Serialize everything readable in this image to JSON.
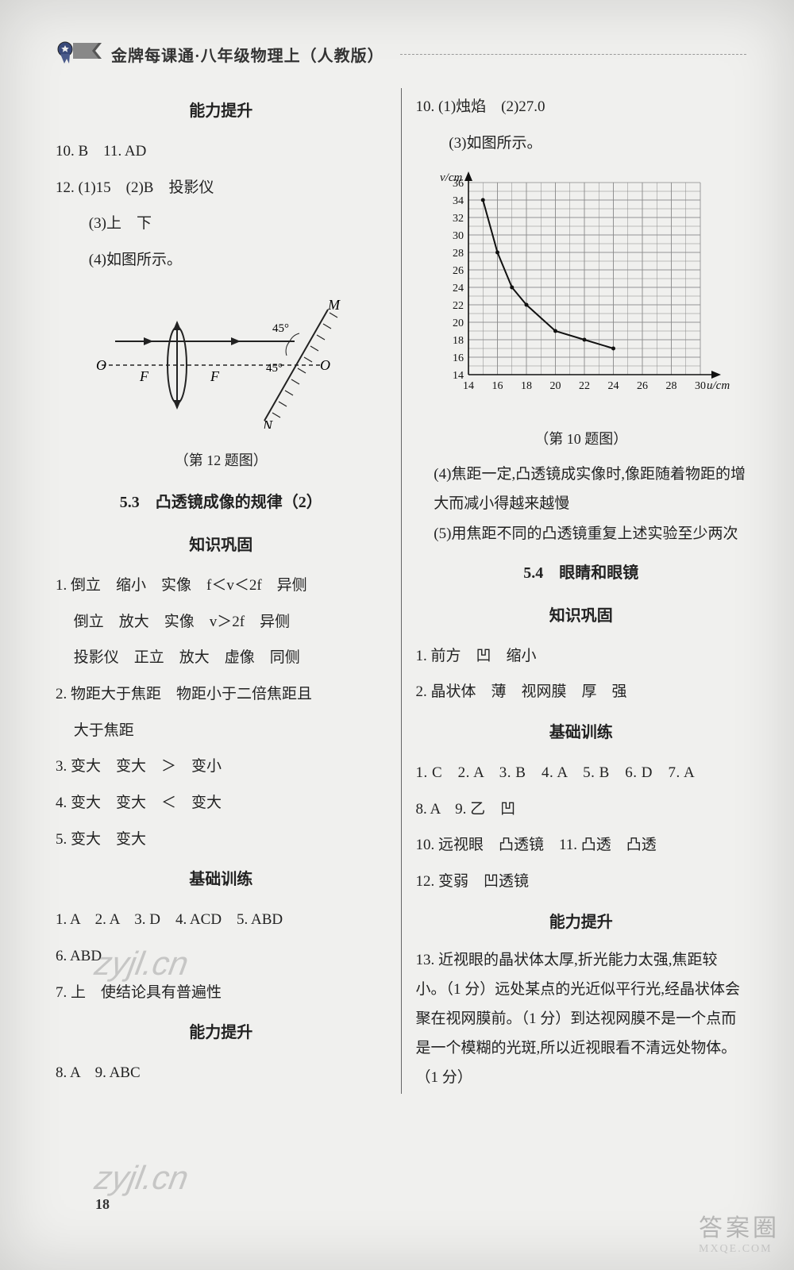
{
  "header": {
    "title": "金牌每课通·八年级物理上（人教版）"
  },
  "left": {
    "sec_ability": "能力提升",
    "l10": "10. B　11. AD",
    "l12": "12. (1)15　(2)B　投影仪",
    "l12_3": "(3)上　下",
    "l12_4": "(4)如图所示。",
    "fig12_caption": "（第 12 题图）",
    "fig12": {
      "labels": {
        "O_left": "O",
        "F_left": "F",
        "F_right": "F",
        "O_right": "O",
        "M": "M",
        "N": "N",
        "ang45a": "45°",
        "ang45b": "45°"
      },
      "colors": {
        "stroke": "#222222"
      }
    },
    "sec_5_3": "5.3　凸透镜成像的规律（2）",
    "sec_knowledge": "知识巩固",
    "k1a": "1. 倒立　缩小　实像　f＜v＜2f　异侧",
    "k1b": "倒立　放大　实像　v＞2f　异侧",
    "k1c": "投影仪　正立　放大　虚像　同侧",
    "k2": "2. 物距大于焦距　物距小于二倍焦距且",
    "k2b": "大于焦距",
    "k3": "3. 变大　变大　＞　变小",
    "k4": "4. 变大　变大　＜　变大",
    "k5": "5. 变大　变大",
    "sec_basic": "基础训练",
    "b1": "1. A　2. A　3. D　4. ACD　5. ABD",
    "b6": "6. ABD",
    "b7": "7. 上　使结论具有普遍性",
    "sec_ability2": "能力提升",
    "a8": "8. A　9. ABC"
  },
  "right": {
    "r10": "10. (1)烛焰　(2)27.0",
    "r10_3": "(3)如图所示。",
    "fig10_caption": "（第 10 题图）",
    "chart": {
      "type": "line",
      "xlabel": "u/cm",
      "ylabel": "v/cm",
      "xmin": 14,
      "xmax": 30,
      "xticks": [
        14,
        16,
        18,
        20,
        22,
        24,
        26,
        28,
        30
      ],
      "ymin": 14,
      "ymax": 36,
      "yticks": [
        14,
        16,
        18,
        20,
        22,
        24,
        26,
        28,
        30,
        32,
        34,
        36
      ],
      "grid_color": "#888888",
      "bg": "#f0f0ee",
      "curve_color": "#111111",
      "curve_width": 2,
      "points": [
        {
          "u": 15,
          "v": 34
        },
        {
          "u": 16,
          "v": 28
        },
        {
          "u": 17,
          "v": 24
        },
        {
          "u": 18,
          "v": 22
        },
        {
          "u": 20,
          "v": 19
        },
        {
          "u": 22,
          "v": 18
        },
        {
          "u": 24,
          "v": 17
        }
      ]
    },
    "r10_4": "(4)焦距一定,凸透镜成实像时,像距随着物距的增大而减小得越来越慢",
    "r10_5": "(5)用焦距不同的凸透镜重复上述实验至少两次",
    "sec_5_4": "5.4　眼睛和眼镜",
    "sec_knowledge": "知识巩固",
    "k1": "1. 前方　凹　缩小",
    "k2": "2. 晶状体　薄　视网膜　厚　强",
    "sec_basic": "基础训练",
    "b1": "1. C　2. A　3. B　4. A　5. B　6. D　7. A",
    "b8": "8. A　9. 乙　凹",
    "b10": "10. 远视眼　凸透镜　11. 凸透　凸透",
    "b12": "12. 变弱　凹透镜",
    "sec_ability": "能力提升",
    "a13": "13. 近视眼的晶状体太厚,折光能力太强,焦距较小。（1 分）远处某点的光近似平行光,经晶状体会聚在视网膜前。（1 分）到达视网膜不是一个点而是一个模糊的光斑,所以近视眼看不清远处物体。（1 分）"
  },
  "page_number": "18",
  "watermark": "zyjl.cn",
  "corner": {
    "line1": "答案圈",
    "line2": "MXQE.COM"
  }
}
